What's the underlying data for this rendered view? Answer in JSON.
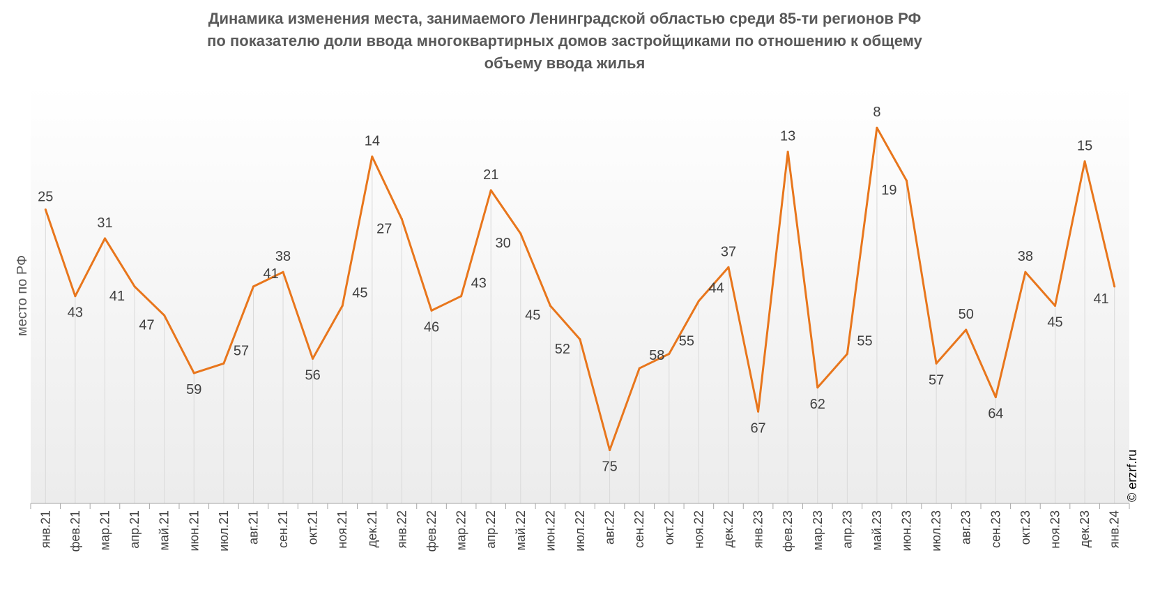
{
  "chart_data": {
    "type": "line",
    "title_lines": [
      "Динамика изменения места, занимаемого Ленинградской областью среди 85-ти регионов РФ",
      "по показателю доли ввода многоквартирных домов застройщиками по отношению к общему",
      "объему ввода жилья"
    ],
    "ylabel": "место по РФ",
    "categories": [
      "янв.21",
      "фев.21",
      "мар.21",
      "апр.21",
      "май.21",
      "июн.21",
      "июл.21",
      "авг.21",
      "сен.21",
      "окт.21",
      "ноя.21",
      "дек.21",
      "янв.22",
      "фев.22",
      "мар.22",
      "апр.22",
      "май.22",
      "июн.22",
      "июл.22",
      "авг.22",
      "сен.22",
      "окт.22",
      "ноя.22",
      "дек.22",
      "янв.23",
      "фев.23",
      "мар.23",
      "апр.23",
      "май.23",
      "июн.23",
      "июл.23",
      "авг.23",
      "сен.23",
      "окт.23",
      "ноя.23",
      "дек.23",
      "янв.24"
    ],
    "values": [
      25,
      43,
      31,
      41,
      47,
      59,
      57,
      41,
      38,
      56,
      45,
      14,
      27,
      46,
      43,
      21,
      30,
      45,
      52,
      75,
      58,
      55,
      44,
      37,
      67,
      13,
      62,
      55,
      8,
      19,
      57,
      50,
      64,
      38,
      45,
      15,
      41
    ],
    "y_reversed": true,
    "ylim": [
      85,
      0
    ],
    "line_color": "#E8761C",
    "copyright": "© erzrf.ru"
  }
}
